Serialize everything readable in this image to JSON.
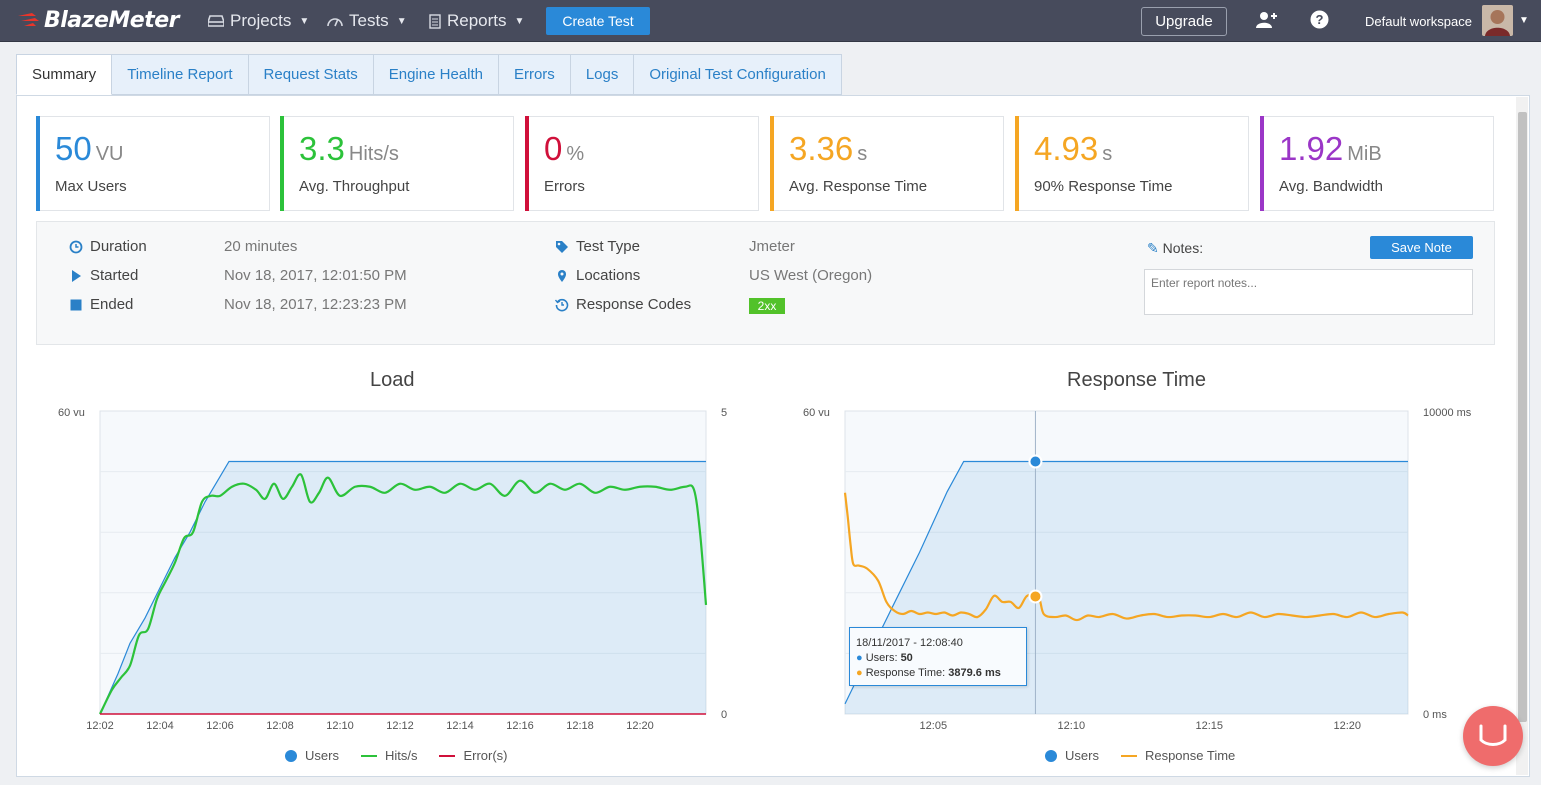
{
  "topbar": {
    "brand": "BlazeMeter",
    "nav": [
      {
        "label": "Projects",
        "icon": "drive-icon"
      },
      {
        "label": "Tests",
        "icon": "gauge-icon"
      },
      {
        "label": "Reports",
        "icon": "report-icon"
      }
    ],
    "create_label": "Create Test",
    "upgrade_label": "Upgrade",
    "workspace": "Default workspace"
  },
  "tabs": [
    "Summary",
    "Timeline Report",
    "Request Stats",
    "Engine Health",
    "Errors",
    "Logs",
    "Original Test Configuration"
  ],
  "active_tab": "Summary",
  "kpis": [
    {
      "value": "50",
      "unit": "VU",
      "label": "Max Users",
      "color": "#2a89d8"
    },
    {
      "value": "3.3",
      "unit": "Hits/s",
      "label": "Avg. Throughput",
      "color": "#2cc23a"
    },
    {
      "value": "0",
      "unit": "%",
      "label": "Errors",
      "color": "#d0103a"
    },
    {
      "value": "3.36",
      "unit": "s",
      "label": "Avg. Response Time",
      "color": "#f5a623"
    },
    {
      "value": "4.93",
      "unit": "s",
      "label": "90% Response Time",
      "color": "#f5a623"
    },
    {
      "value": "1.92",
      "unit": "MiB",
      "label": "Avg. Bandwidth",
      "color": "#9b36c7"
    }
  ],
  "info": {
    "duration_label": "Duration",
    "duration": "20 minutes",
    "started_label": "Started",
    "started": "Nov 18, 2017, 12:01:50 PM",
    "ended_label": "Ended",
    "ended": "Nov 18, 2017, 12:23:23 PM",
    "type_label": "Test Type",
    "type": "Jmeter",
    "locations_label": "Locations",
    "locations": "US West (Oregon)",
    "codes_label": "Response Codes",
    "codes": "2xx",
    "notes_label": "Notes:",
    "save_note_label": "Save Note",
    "notes_placeholder": "Enter report notes..."
  },
  "chart_data": [
    {
      "type": "line",
      "title": "Load",
      "left_axis_top": "60 vu",
      "right_axis": [
        "5",
        "0"
      ],
      "ylim_left": [
        0,
        60
      ],
      "ylim_right": [
        0,
        5
      ],
      "x_ticks": [
        "12:02",
        "12:04",
        "12:06",
        "12:08",
        "12:10",
        "12:12",
        "12:14",
        "12:16",
        "12:18",
        "12:20"
      ],
      "x_minutes": [
        2,
        22.2
      ],
      "series": [
        {
          "name": "Users",
          "color": "#2a89d8",
          "axis": "left",
          "x": [
            2,
            2.6,
            3.0,
            3.5,
            4.0,
            4.5,
            5.0,
            5.5,
            6.0,
            6.3,
            22.2
          ],
          "y": [
            0,
            8,
            14,
            19,
            25,
            31,
            36,
            42,
            47,
            50,
            50
          ]
        },
        {
          "name": "Hits/s",
          "color": "#2cc23a",
          "axis": "right",
          "x": [
            2,
            2.4,
            2.7,
            3.0,
            3.3,
            3.6,
            3.9,
            4.2,
            4.5,
            4.8,
            5.1,
            5.4,
            5.7,
            6.0,
            6.4,
            6.8,
            7.2,
            7.5,
            7.8,
            8.1,
            8.4,
            8.7,
            9.0,
            9.3,
            9.6,
            10.0,
            10.5,
            11.0,
            11.5,
            12.0,
            12.5,
            13.0,
            13.5,
            14.0,
            14.5,
            15.0,
            15.5,
            16.0,
            16.5,
            17.0,
            17.5,
            18.0,
            18.5,
            19.0,
            19.5,
            20.0,
            20.5,
            21.0,
            21.5,
            21.8,
            22.0,
            22.2
          ],
          "y": [
            0,
            0.4,
            0.6,
            0.8,
            1.3,
            1.4,
            1.9,
            2.2,
            2.5,
            2.9,
            3.0,
            3.5,
            3.6,
            3.6,
            3.75,
            3.8,
            3.7,
            3.55,
            3.8,
            3.55,
            3.75,
            3.95,
            3.5,
            3.65,
            3.9,
            3.6,
            3.75,
            3.75,
            3.65,
            3.8,
            3.7,
            3.75,
            3.65,
            3.8,
            3.7,
            3.8,
            3.6,
            3.85,
            3.65,
            3.8,
            3.7,
            3.8,
            3.65,
            3.75,
            3.7,
            3.75,
            3.75,
            3.7,
            3.75,
            3.7,
            3.0,
            1.8
          ]
        },
        {
          "name": "Error(s)",
          "color": "#d0103a",
          "axis": "right",
          "x": [
            2,
            22.2
          ],
          "y": [
            0,
            0
          ]
        }
      ]
    },
    {
      "type": "line",
      "title": "Response Time",
      "left_axis_top": "60 vu",
      "right_axis": [
        "10000 ms",
        "0 ms"
      ],
      "ylim_left": [
        0,
        60
      ],
      "ylim_right": [
        0,
        10000
      ],
      "x_ticks": [
        "12:05",
        "12:10",
        "12:15",
        "12:20"
      ],
      "x_minutes": [
        1.8,
        22.2
      ],
      "series": [
        {
          "name": "Users",
          "color": "#2a89d8",
          "axis": "left",
          "x": [
            1.8,
            2.6,
            3.5,
            4.5,
            5.5,
            6.1,
            22.2
          ],
          "y": [
            2,
            11,
            21,
            32,
            44,
            50,
            50
          ]
        },
        {
          "name": "Response Time",
          "color": "#f5a623",
          "axis": "right",
          "x": [
            1.8,
            1.9,
            2.0,
            2.1,
            2.3,
            2.6,
            3.0,
            3.3,
            3.6,
            3.9,
            4.2,
            4.5,
            4.8,
            5.1,
            5.4,
            5.7,
            6.0,
            6.3,
            6.6,
            6.9,
            7.2,
            7.5,
            7.8,
            8.1,
            8.4,
            8.8,
            9.0,
            9.4,
            9.8,
            10.2,
            10.6,
            11.0,
            11.5,
            12.0,
            12.5,
            13.0,
            13.5,
            14.0,
            14.5,
            15.0,
            15.5,
            16.0,
            16.5,
            17.0,
            17.5,
            18.0,
            18.5,
            19.0,
            19.5,
            20.0,
            20.5,
            21.0,
            21.5,
            22.0,
            22.2
          ],
          "y": [
            7300,
            6500,
            5600,
            4950,
            4900,
            4800,
            4400,
            3700,
            3400,
            3300,
            3400,
            3300,
            3350,
            3300,
            3350,
            3250,
            3350,
            3300,
            3200,
            3450,
            3900,
            3700,
            3700,
            3500,
            3900,
            3900,
            3300,
            3200,
            3250,
            3100,
            3250,
            3200,
            3300,
            3150,
            3250,
            3300,
            3200,
            3250,
            3250,
            3200,
            3300,
            3200,
            3350,
            3200,
            3300,
            3250,
            3200,
            3250,
            3300,
            3200,
            3350,
            3200,
            3300,
            3350,
            3250
          ]
        }
      ],
      "tooltip": {
        "time": "18/11/2017 - 12:08:40",
        "users_label": "Users: ",
        "users_value": "50",
        "rt_label": "Response Time: ",
        "rt_value": "3879.6 ms",
        "x": 8.7
      }
    }
  ]
}
